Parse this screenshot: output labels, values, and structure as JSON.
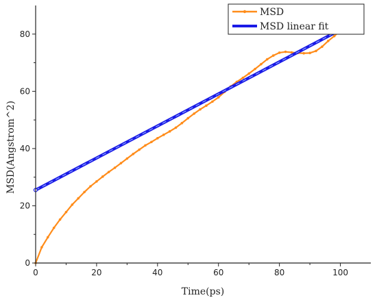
{
  "chart_data": {
    "type": "line",
    "title": "",
    "xlabel": "Time(ps)",
    "ylabel": "MSD(Angstrom^2)",
    "xlim": [
      0,
      110
    ],
    "ylim": [
      0,
      90
    ],
    "x_ticks": [
      0,
      20,
      40,
      60,
      80,
      100
    ],
    "y_ticks": [
      0,
      20,
      40,
      60,
      80
    ],
    "grid": false,
    "legend_position": "top-right",
    "series": [
      {
        "name": "MSD",
        "color": "#FF8C1A",
        "marker": "circle",
        "x": [
          0,
          2,
          4,
          6,
          8,
          10,
          12,
          14,
          16,
          18,
          20,
          22,
          24,
          26,
          28,
          30,
          32,
          34,
          36,
          38,
          40,
          42,
          44,
          46,
          48,
          50,
          52,
          54,
          56,
          58,
          60,
          62,
          64,
          66,
          68,
          70,
          72,
          74,
          76,
          78,
          80,
          82,
          84,
          86,
          88,
          90,
          92,
          94,
          96,
          98,
          100
        ],
        "y": [
          0,
          5.5,
          9,
          12.3,
          15.2,
          17.8,
          20.4,
          22.6,
          24.8,
          26.8,
          28.5,
          30.2,
          31.8,
          33.3,
          34.9,
          36.5,
          38.1,
          39.6,
          41.1,
          42.3,
          43.6,
          44.8,
          46.0,
          47.3,
          48.9,
          50.6,
          52.2,
          53.7,
          55.0,
          56.4,
          57.9,
          59.8,
          61.7,
          63.3,
          64.7,
          66.2,
          67.8,
          69.5,
          71.2,
          72.5,
          73.5,
          73.8,
          73.6,
          73.4,
          73.3,
          73.4,
          74.1,
          75.6,
          77.6,
          79.3,
          81.2
        ]
      },
      {
        "name": "MSD linear fit",
        "color": "#1A1AE6",
        "marker": "x",
        "x": [
          0,
          100
        ],
        "y": [
          25.5,
          81.5
        ]
      }
    ]
  }
}
